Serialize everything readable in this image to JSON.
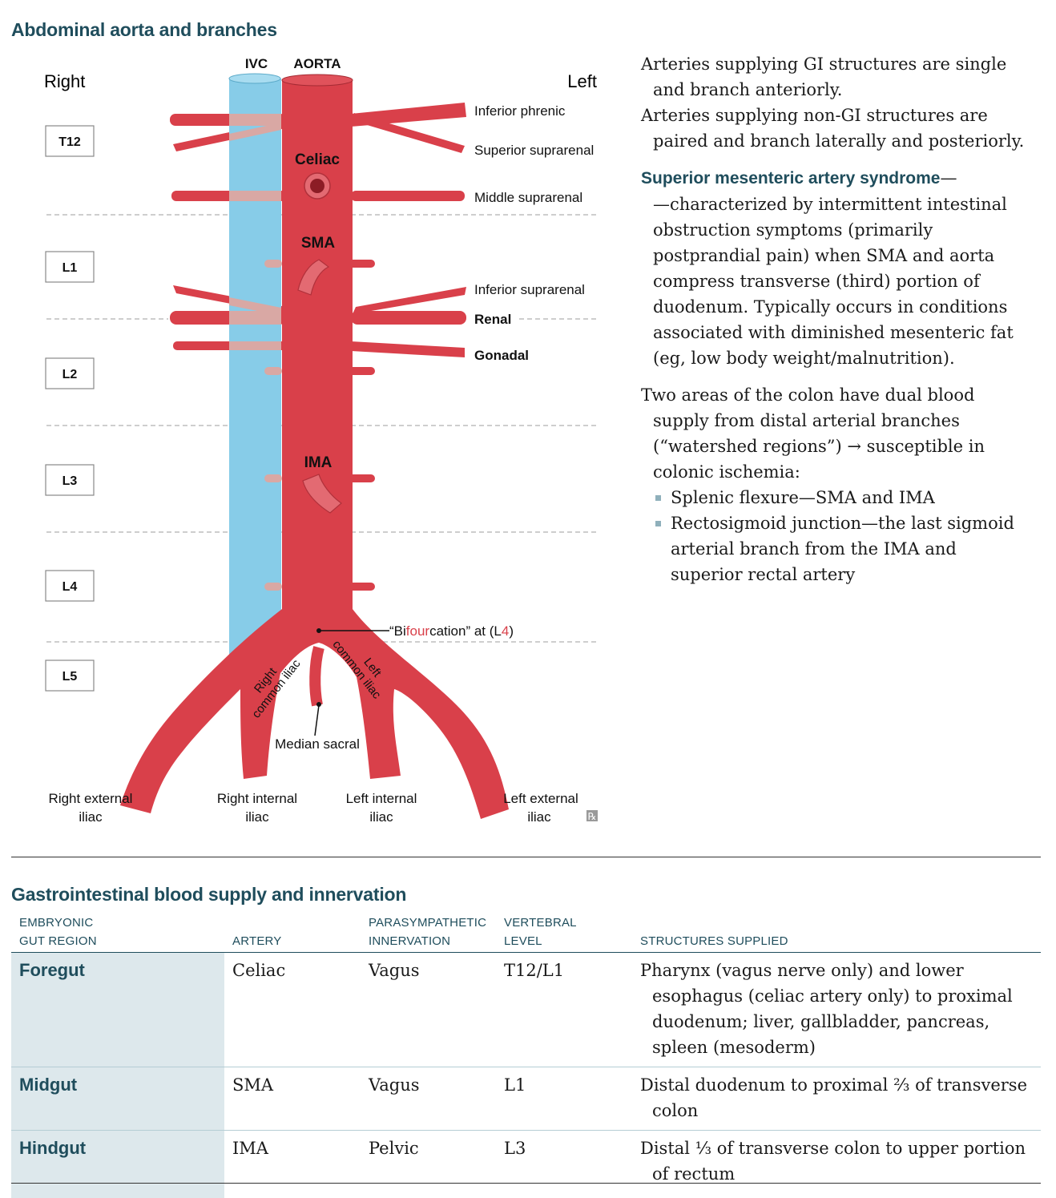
{
  "section1": {
    "title": "Abdominal aorta and branches"
  },
  "diagram": {
    "vessel_labels": {
      "ivc": "IVC",
      "aorta": "AORTA"
    },
    "sides": {
      "right": "Right",
      "left": "Left"
    },
    "vertebrae": [
      "T12",
      "L1",
      "L2",
      "L3",
      "L4",
      "L5"
    ],
    "inner_labels": {
      "celiac": "Celiac",
      "sma": "SMA",
      "ima": "IMA"
    },
    "branch_labels": {
      "inferior_phrenic": "Inferior phrenic",
      "superior_suprarenal": "Superior suprarenal",
      "middle_suprarenal": "Middle suprarenal",
      "inferior_suprarenal": "Inferior suprarenal",
      "renal": "Renal",
      "gonadal": "Gonadal"
    },
    "bifurcation": {
      "pre": "“Bi",
      "highlight": "four",
      "mid": "cation” at (L",
      "highlight2": "4",
      "post": ")"
    },
    "iliac_labels": {
      "right_common_1": "Right",
      "right_common_2": "common iliac",
      "left_common_1": "Left",
      "left_common_2": "common iliac",
      "median_sacral": "Median sacral",
      "right_external_1": "Right external",
      "right_external_2": "iliac",
      "right_internal_1": "Right internal",
      "right_internal_2": "iliac",
      "left_internal_1": "Left internal",
      "left_internal_2": "iliac",
      "left_external_1": "Left external",
      "left_external_2": "iliac"
    },
    "rx_mark": "℞",
    "colors": {
      "artery": "#d9404a",
      "vein": "#87cce8",
      "overlap": "#d9a8a4",
      "dark": "#8c1c25"
    }
  },
  "notes": {
    "p1": "Arteries supplying GI structures are single and branch anteriorly.",
    "p2": "Arteries supplying non-GI structures are paired and branch laterally and posteriorly.",
    "sma_term": "Superior mesenteric artery syndrome",
    "sma_dash": "—",
    "sma_text": "—characterized by intermittent intestinal obstruction symptoms (primarily postprandial pain) when SMA and aorta compress transverse (third) portion of duodenum. Typically occurs in conditions associated with diminished mesenteric fat (eg, low body weight/malnutrition).",
    "p4": "Two areas of the colon have dual blood supply from distal arterial branches (“watershed regions”) → susceptible in colonic ischemia:",
    "bullets": [
      "Splenic flexure—SMA and IMA",
      "Rectosigmoid junction—the last sigmoid arterial branch from the IMA and superior rectal artery"
    ]
  },
  "section2": {
    "title": "Gastrointestinal blood supply and innervation"
  },
  "table": {
    "headers": {
      "region_1": "Embryonic",
      "region_2": "gut region",
      "artery": "Artery",
      "para_1": "Parasympathetic",
      "para_2": "innervation",
      "vert_1": "Vertebral",
      "vert_2": "level",
      "structures": "Structures supplied"
    },
    "rows": [
      {
        "region": "Foregut",
        "artery": "Celiac",
        "innervation": "Vagus",
        "level": "T12/L1",
        "structures": "Pharynx (vagus nerve only) and lower esophagus (celiac artery only) to proximal duodenum; liver, gallbladder, pancreas, spleen (mesoderm)"
      },
      {
        "region": "Midgut",
        "artery": "SMA",
        "innervation": "Vagus",
        "level": "L1",
        "structures": "Distal duodenum to proximal ²⁄₃ of transverse colon"
      },
      {
        "region": "Hindgut",
        "artery": "IMA",
        "innervation": "Pelvic",
        "level": "L3",
        "structures": "Distal ¹⁄₃ of transverse colon to upper portion of rectum"
      }
    ]
  }
}
